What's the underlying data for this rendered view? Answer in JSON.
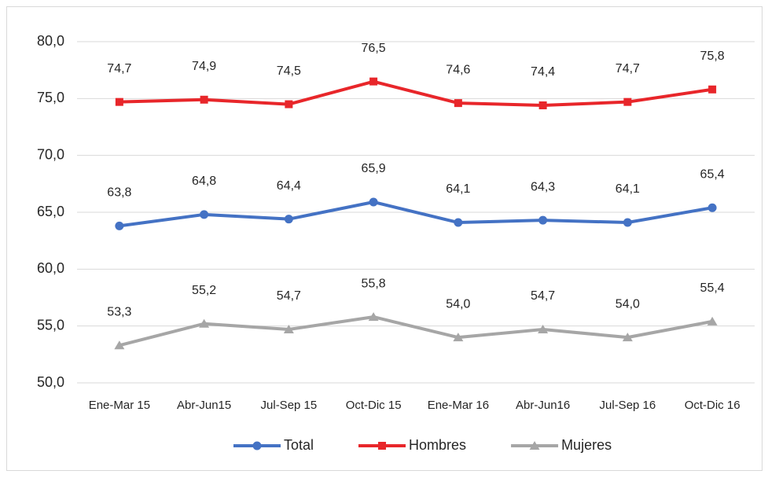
{
  "chart_data": {
    "type": "line",
    "categories": [
      "Ene-Mar 15",
      "Abr-Jun15",
      "Jul-Sep 15",
      "Oct-Dic 15",
      "Ene-Mar 16",
      "Abr-Jun16",
      "Jul-Sep 16",
      "Oct-Dic 16"
    ],
    "series": [
      {
        "name": "Total",
        "color": "#4472c4",
        "marker": "circle",
        "values": [
          63.8,
          64.8,
          64.4,
          65.9,
          64.1,
          64.3,
          64.1,
          65.4
        ],
        "value_labels": [
          "63,8",
          "64,8",
          "64,4",
          "65,9",
          "64,1",
          "64,3",
          "64,1",
          "65,4"
        ]
      },
      {
        "name": "Hombres",
        "color": "#e8262a",
        "marker": "square",
        "values": [
          74.7,
          74.9,
          74.5,
          76.5,
          74.6,
          74.4,
          74.7,
          75.8
        ],
        "value_labels": [
          "74,7",
          "74,9",
          "74,5",
          "76,5",
          "74,6",
          "74,4",
          "74,7",
          "75,8"
        ]
      },
      {
        "name": "Mujeres",
        "color": "#a6a6a6",
        "marker": "triangle",
        "values": [
          53.3,
          55.2,
          54.7,
          55.8,
          54.0,
          54.7,
          54.0,
          55.4
        ],
        "value_labels": [
          "53,3",
          "55,2",
          "54,7",
          "55,8",
          "54,0",
          "54,7",
          "54,0",
          "55,4"
        ]
      }
    ],
    "ylim": [
      50,
      80
    ],
    "yticks": [
      {
        "value": 50,
        "label": "50,0"
      },
      {
        "value": 55,
        "label": "55,0"
      },
      {
        "value": 60,
        "label": "60,0"
      },
      {
        "value": 65,
        "label": "65,0"
      },
      {
        "value": 70,
        "label": "70,0"
      },
      {
        "value": 75,
        "label": "75,0"
      },
      {
        "value": 80,
        "label": "80,0"
      }
    ],
    "grid": true,
    "legend": "bottom"
  }
}
